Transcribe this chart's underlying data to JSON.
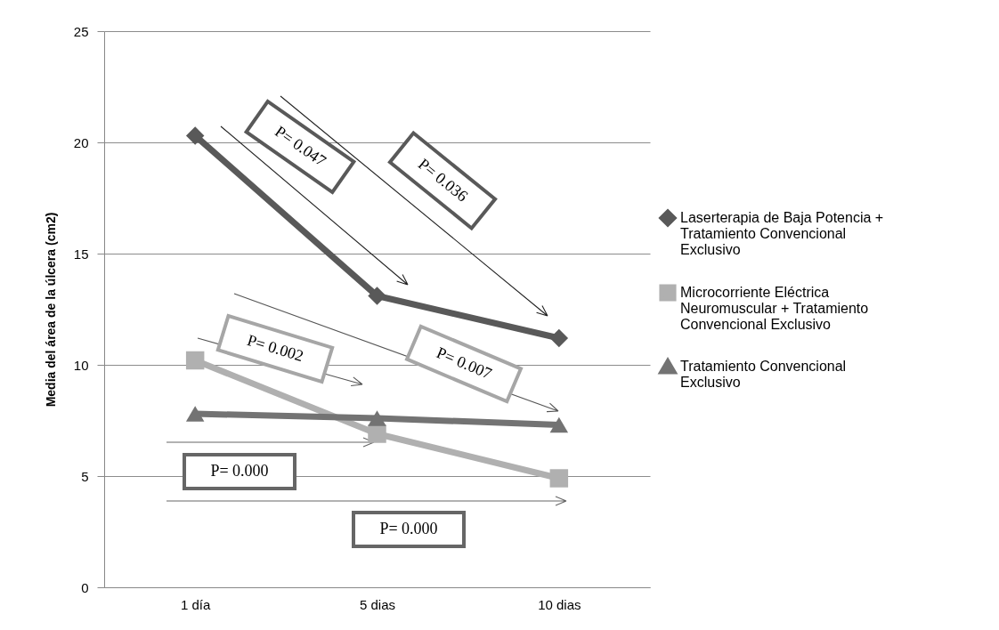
{
  "chart_data": {
    "type": "line",
    "ylabel": "Media del área de la úlcera  (cm2)",
    "categories": [
      "1 día",
      "5 dias",
      "10 dias"
    ],
    "series": [
      {
        "name": "Laserterapia de Baja Potencia + Tratamiento Convencional Exclusivo",
        "color": "#595959",
        "marker": "diamond",
        "values": [
          20.3,
          13.1,
          11.2
        ]
      },
      {
        "name": "Microcorriente Eléctrica Neuromuscular + Tratamiento Convencional Exclusivo",
        "color": "#b0b0b0",
        "marker": "square",
        "values": [
          10.2,
          6.9,
          4.9
        ]
      },
      {
        "name": "Tratamiento Convencional Exclusivo",
        "color": "#737373",
        "marker": "triangle",
        "values": [
          7.8,
          7.6,
          7.3
        ]
      }
    ],
    "ylim": [
      0,
      25
    ],
    "yticks": [
      0,
      5,
      10,
      15,
      20,
      25
    ],
    "grid": "y",
    "legend": "right",
    "line_style": "solid",
    "annotations": [
      "P= 0.047",
      "P= 0.036",
      "P= 0.002",
      "P= 0.007",
      "P= 0.000",
      "P= 0.000"
    ]
  }
}
